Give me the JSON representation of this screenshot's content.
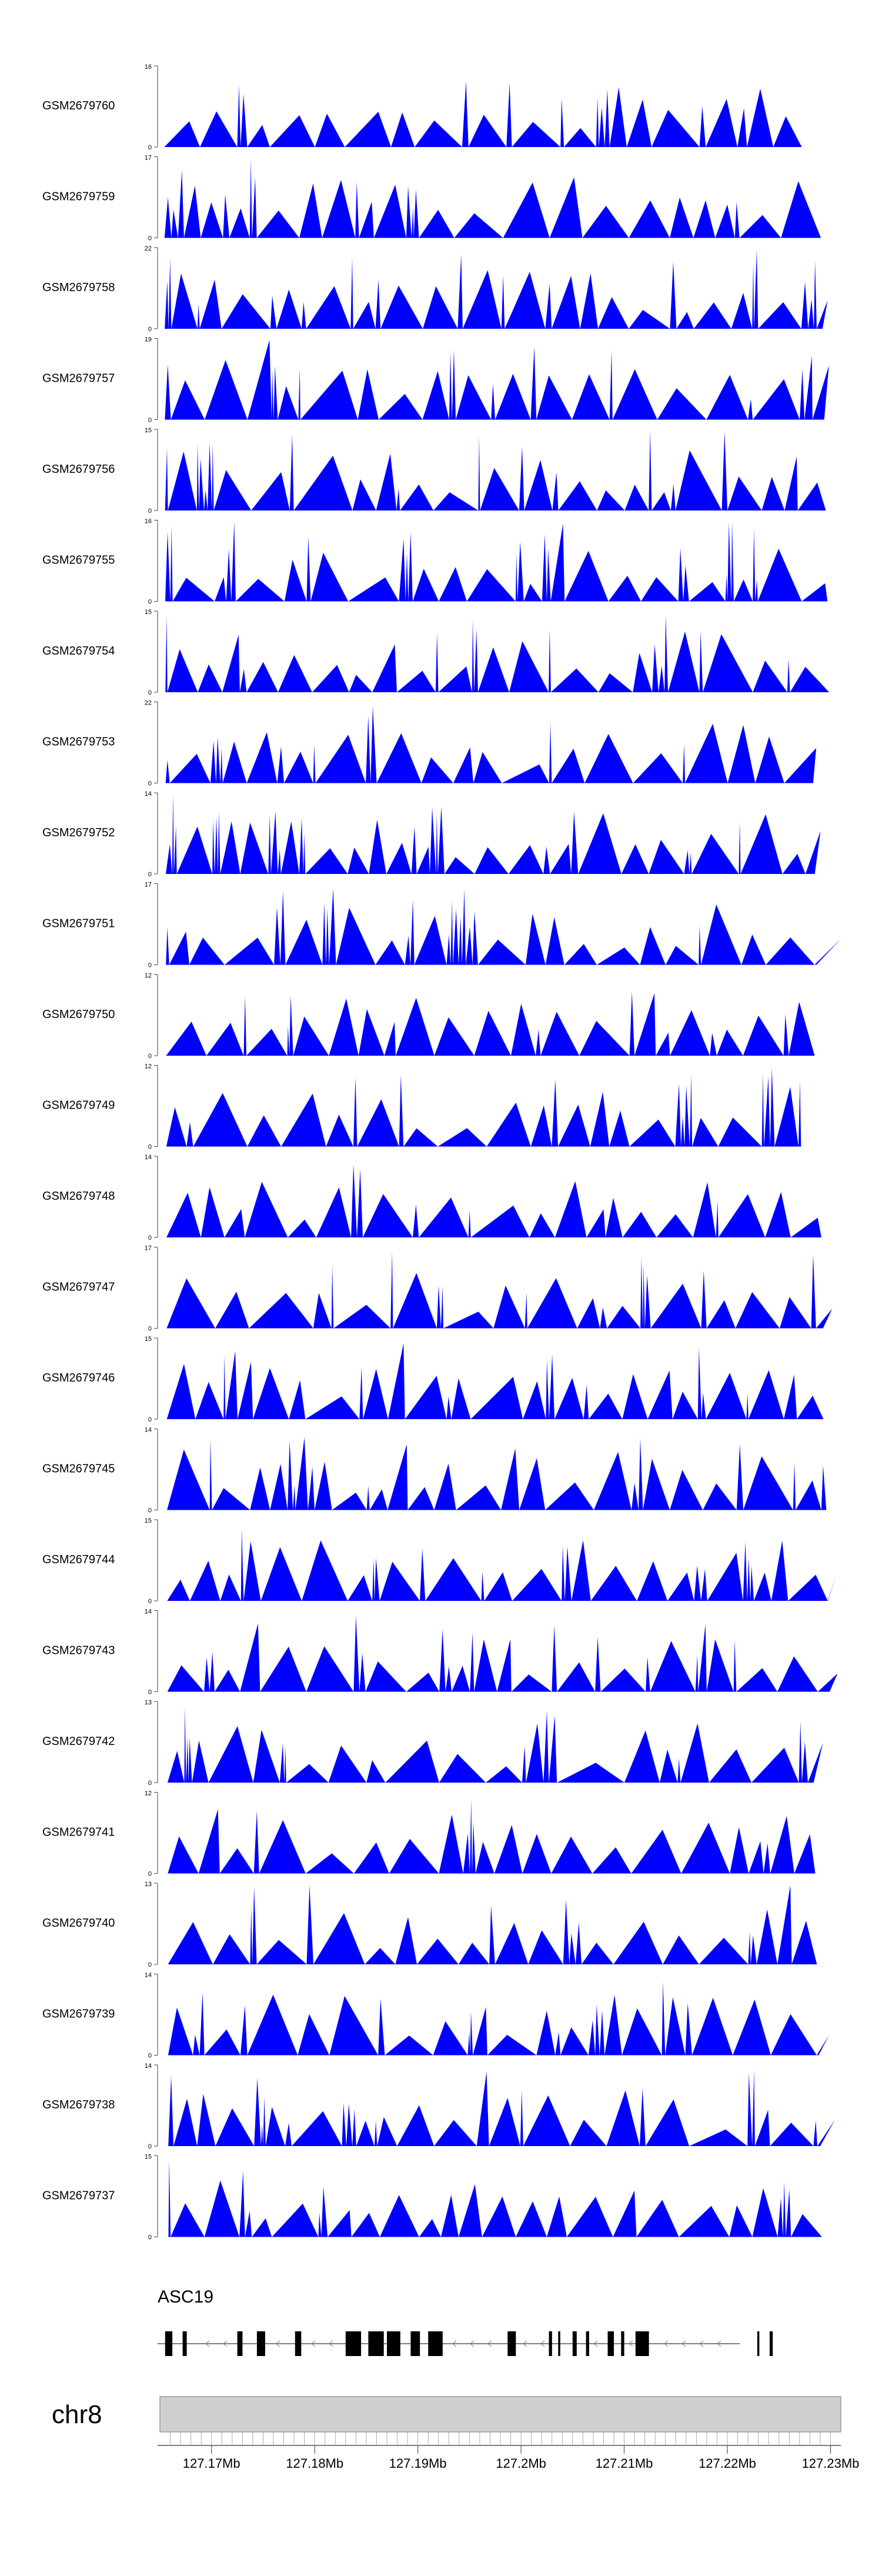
{
  "chart_data": {
    "type": "area",
    "title": "",
    "xlabel": "",
    "ylabel": "",
    "x_range_mb": [
      127.165,
      127.231
    ],
    "series_color": "#0000ff",
    "background_color": "#ffffff",
    "tracks": [
      {
        "name": "GSM2679760",
        "ymax": 16,
        "ylim": [
          0,
          16
        ]
      },
      {
        "name": "GSM2679759",
        "ymax": 17,
        "ylim": [
          0,
          17
        ]
      },
      {
        "name": "GSM2679758",
        "ymax": 22,
        "ylim": [
          0,
          22
        ]
      },
      {
        "name": "GSM2679757",
        "ymax": 19,
        "ylim": [
          0,
          19
        ]
      },
      {
        "name": "GSM2679756",
        "ymax": 15,
        "ylim": [
          0,
          15
        ]
      },
      {
        "name": "GSM2679755",
        "ymax": 16,
        "ylim": [
          0,
          16
        ]
      },
      {
        "name": "GSM2679754",
        "ymax": 15,
        "ylim": [
          0,
          15
        ]
      },
      {
        "name": "GSM2679753",
        "ymax": 22,
        "ylim": [
          0,
          22
        ]
      },
      {
        "name": "GSM2679752",
        "ymax": 14,
        "ylim": [
          0,
          14
        ]
      },
      {
        "name": "GSM2679751",
        "ymax": 17,
        "ylim": [
          0,
          17
        ]
      },
      {
        "name": "GSM2679750",
        "ymax": 12,
        "ylim": [
          0,
          12
        ]
      },
      {
        "name": "GSM2679749",
        "ymax": 12,
        "ylim": [
          0,
          12
        ]
      },
      {
        "name": "GSM2679748",
        "ymax": 14,
        "ylim": [
          0,
          14
        ]
      },
      {
        "name": "GSM2679747",
        "ymax": 17,
        "ylim": [
          0,
          17
        ]
      },
      {
        "name": "GSM2679746",
        "ymax": 15,
        "ylim": [
          0,
          15
        ]
      },
      {
        "name": "GSM2679745",
        "ymax": 14,
        "ylim": [
          0,
          14
        ]
      },
      {
        "name": "GSM2679744",
        "ymax": 15,
        "ylim": [
          0,
          15
        ]
      },
      {
        "name": "GSM2679743",
        "ymax": 14,
        "ylim": [
          0,
          14
        ]
      },
      {
        "name": "GSM2679742",
        "ymax": 13,
        "ylim": [
          0,
          13
        ]
      },
      {
        "name": "GSM2679741",
        "ymax": 12,
        "ylim": [
          0,
          12
        ]
      },
      {
        "name": "GSM2679740",
        "ymax": 13,
        "ylim": [
          0,
          13
        ]
      },
      {
        "name": "GSM2679739",
        "ymax": 14,
        "ylim": [
          0,
          14
        ]
      },
      {
        "name": "GSM2679738",
        "ymax": 14,
        "ylim": [
          0,
          14
        ]
      },
      {
        "name": "GSM2679737",
        "ymax": 15,
        "ylim": [
          0,
          15
        ]
      }
    ],
    "gene": {
      "name": "ASC19",
      "strand": "-",
      "exons_mb": [
        [
          127.1655,
          127.1662
        ],
        [
          127.1672,
          127.1676
        ],
        [
          127.1725,
          127.173
        ],
        [
          127.1744,
          127.1752
        ],
        [
          127.1781,
          127.1787
        ],
        [
          127.183,
          127.1845
        ],
        [
          127.1852,
          127.1867
        ],
        [
          127.187,
          127.1883
        ],
        [
          127.1893,
          127.1902
        ],
        [
          127.191,
          127.1924
        ],
        [
          127.1987,
          127.1995
        ],
        [
          127.2027,
          127.203
        ],
        [
          127.2036,
          127.2038
        ],
        [
          127.205,
          127.2054
        ],
        [
          127.2063,
          127.2066
        ],
        [
          127.2084,
          127.209
        ],
        [
          127.2097,
          127.21
        ],
        [
          127.2111,
          127.2124
        ],
        [
          127.2229,
          127.2231
        ],
        [
          127.2241,
          127.2244
        ]
      ]
    },
    "chromosome": "chr8",
    "x_ticks": [
      "127.17Mb",
      "127.18Mb",
      "127.19Mb",
      "127.2Mb",
      "127.21Mb",
      "127.22Mb",
      "127.23Mb"
    ],
    "x_tick_values_mb": [
      127.17,
      127.18,
      127.19,
      127.2,
      127.21,
      127.22,
      127.23
    ]
  }
}
